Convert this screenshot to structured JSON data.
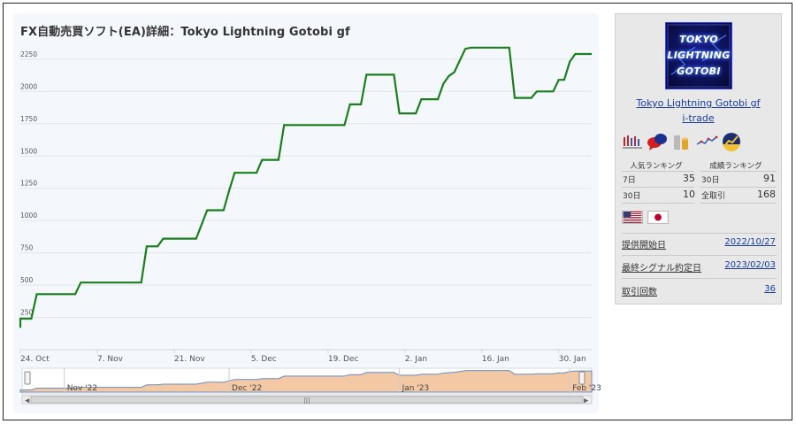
{
  "chart": {
    "title": "FX自動売買ソフト(EA)詳細：Tokyo Lightning Gotobi gf",
    "line_color": "#1a7f1a"
  },
  "chart_data": {
    "type": "line",
    "title": "FX自動売買ソフト(EA)詳細：Tokyo Lightning Gotobi gf",
    "xlabel": "",
    "ylabel": "",
    "x_range": [
      "2022-10-24",
      "2023-02-05"
    ],
    "ylim": [
      0,
      2400
    ],
    "y_ticks": [
      250,
      500,
      750,
      1000,
      1250,
      1500,
      1750,
      2000,
      2250
    ],
    "x_tick_labels": [
      "24. Oct",
      "7. Nov",
      "21. Nov",
      "5. Dec",
      "19. Dec",
      "2. Jan",
      "16. Jan",
      "30. Jan"
    ],
    "grid": true,
    "series": [
      {
        "color": "#1a7f1a",
        "points": [
          [
            "2022-10-24",
            170
          ],
          [
            "2022-10-24",
            240
          ],
          [
            "2022-10-26",
            240
          ],
          [
            "2022-10-27",
            430
          ],
          [
            "2022-11-02",
            430
          ],
          [
            "2022-11-03",
            430
          ],
          [
            "2022-11-04",
            520
          ],
          [
            "2022-11-15",
            520
          ],
          [
            "2022-11-16",
            800
          ],
          [
            "2022-11-18",
            800
          ],
          [
            "2022-11-19",
            860
          ],
          [
            "2022-11-25",
            860
          ],
          [
            "2022-11-27",
            1080
          ],
          [
            "2022-11-30",
            1080
          ],
          [
            "2022-12-01",
            1230
          ],
          [
            "2022-12-02",
            1370
          ],
          [
            "2022-12-06",
            1370
          ],
          [
            "2022-12-07",
            1470
          ],
          [
            "2022-12-10",
            1470
          ],
          [
            "2022-12-11",
            1740
          ],
          [
            "2022-12-22",
            1740
          ],
          [
            "2022-12-23",
            1900
          ],
          [
            "2022-12-25",
            1900
          ],
          [
            "2022-12-26",
            2130
          ],
          [
            "2022-12-31",
            2130
          ],
          [
            "2023-01-01",
            1830
          ],
          [
            "2023-01-04",
            1830
          ],
          [
            "2023-01-05",
            1940
          ],
          [
            "2023-01-08",
            1940
          ],
          [
            "2023-01-09",
            2060
          ],
          [
            "2023-01-10",
            2120
          ],
          [
            "2023-01-11",
            2150
          ],
          [
            "2023-01-13",
            2330
          ],
          [
            "2023-01-14",
            2340
          ],
          [
            "2023-01-18",
            2340
          ],
          [
            "2023-01-21",
            2340
          ],
          [
            "2023-01-22",
            1950
          ],
          [
            "2023-01-24",
            1950
          ],
          [
            "2023-01-25",
            1950
          ],
          [
            "2023-01-26",
            2000
          ],
          [
            "2023-01-29",
            2000
          ],
          [
            "2023-01-30",
            2090
          ],
          [
            "2023-01-31",
            2090
          ],
          [
            "2023-02-01",
            2230
          ],
          [
            "2023-02-02",
            2290
          ],
          [
            "2023-02-05",
            2290
          ]
        ]
      }
    ],
    "navigator": {
      "labels": [
        "Nov '22",
        "Dec '22",
        "Jan '23",
        "Feb '23"
      ],
      "fill_color": "#f2c9a4",
      "line_color": "#6b8bbf"
    }
  },
  "ea": {
    "name": "Tokyo Lightning Gotobi gf",
    "author": "i-trade",
    "logo_line1": "TOKYO",
    "logo_line2": "LIGHTNING",
    "logo_line3": "GOTOBI",
    "badges": [
      "candlestick-chart-icon",
      "speech-bubbles-icon",
      "coin-bars-icon",
      "line-graph-icon",
      "rising-chart-icon"
    ]
  },
  "ranking": {
    "popular_heading": "人気ランキング",
    "performance_heading": "成績ランキング",
    "popular": [
      {
        "label": "7日",
        "value": "35"
      },
      {
        "label": "30日",
        "value": "10"
      }
    ],
    "performance": [
      {
        "label": "30日",
        "value": "91"
      },
      {
        "label": "全取引",
        "value": "168"
      }
    ]
  },
  "flags": [
    "us-flag-icon",
    "japan-flag-icon"
  ],
  "info": {
    "start_label": "提供開始日",
    "start_value": "2022/10/27",
    "last_signal_label": "最終シグナル約定日",
    "last_signal_value": "2023/02/03",
    "trades_label": "取引回数",
    "trades_value": "36"
  }
}
